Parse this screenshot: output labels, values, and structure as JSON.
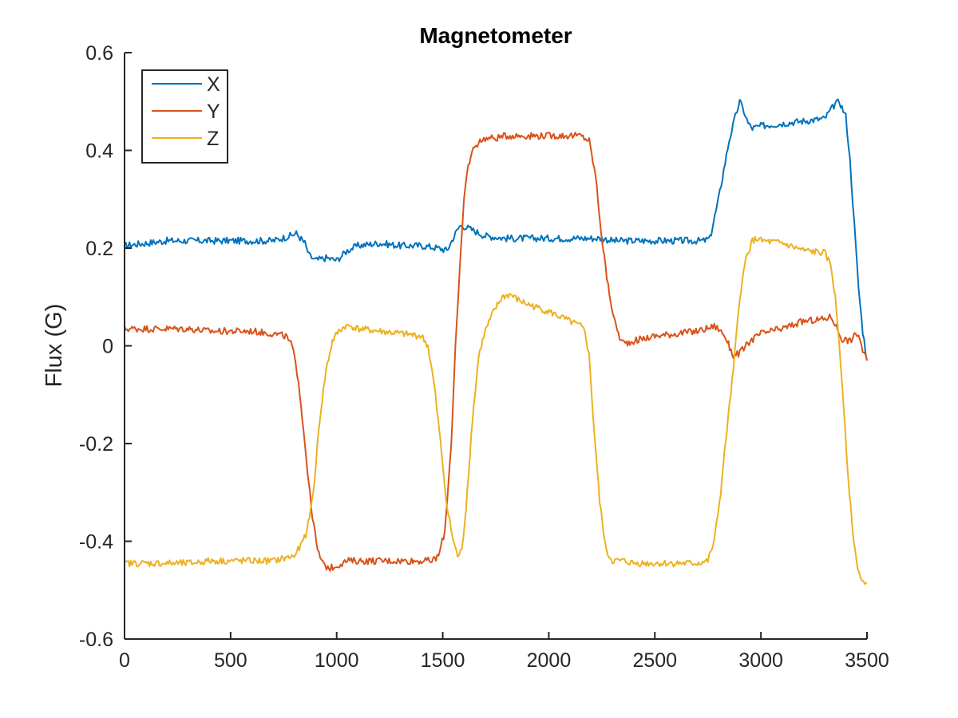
{
  "chart_data": {
    "type": "line",
    "title": "Magnetometer",
    "xlabel": "",
    "ylabel": "Flux (G)",
    "xlim": [
      0,
      3500
    ],
    "ylim": [
      -0.6,
      0.6
    ],
    "xticks": [
      0,
      500,
      1000,
      1500,
      2000,
      2500,
      3000,
      3500
    ],
    "xtick_labels": [
      "0",
      "500",
      "1000",
      "1500",
      "2000",
      "2500",
      "3000",
      "3500"
    ],
    "yticks": [
      -0.6,
      -0.4,
      -0.2,
      0,
      0.2,
      0.4,
      0.6
    ],
    "ytick_labels": [
      "-0.6",
      "-0.4",
      "-0.2",
      "0",
      "0.2",
      "0.4",
      "0.6"
    ],
    "grid": false,
    "legend_position": "top-left",
    "series": [
      {
        "name": "X",
        "color": "#0072BD",
        "x": [
          0,
          100,
          200,
          300,
          400,
          500,
          600,
          700,
          780,
          810,
          850,
          870,
          900,
          950,
          1000,
          1050,
          1100,
          1200,
          1300,
          1400,
          1480,
          1520,
          1560,
          1580,
          1600,
          1650,
          1700,
          1800,
          1900,
          2000,
          2100,
          2200,
          2250,
          2300,
          2400,
          2500,
          2600,
          2700,
          2730,
          2760,
          2800,
          2850,
          2880,
          2900,
          2920,
          2940,
          2960,
          3000,
          3100,
          3200,
          3300,
          3350,
          3370,
          3400,
          3420,
          3440,
          3460,
          3480,
          3500
        ],
        "y": [
          0.205,
          0.21,
          0.215,
          0.215,
          0.215,
          0.215,
          0.215,
          0.215,
          0.225,
          0.23,
          0.21,
          0.185,
          0.175,
          0.18,
          0.175,
          0.195,
          0.205,
          0.21,
          0.205,
          0.205,
          0.2,
          0.195,
          0.23,
          0.245,
          0.245,
          0.235,
          0.225,
          0.22,
          0.22,
          0.22,
          0.22,
          0.22,
          0.22,
          0.215,
          0.215,
          0.215,
          0.215,
          0.215,
          0.215,
          0.22,
          0.3,
          0.42,
          0.47,
          0.5,
          0.48,
          0.455,
          0.445,
          0.45,
          0.455,
          0.46,
          0.465,
          0.495,
          0.5,
          0.47,
          0.38,
          0.25,
          0.12,
          0.03,
          -0.03
        ]
      },
      {
        "name": "Y",
        "color": "#D95319",
        "x": [
          0,
          100,
          200,
          300,
          400,
          500,
          600,
          700,
          760,
          790,
          820,
          850,
          880,
          910,
          940,
          970,
          1000,
          1050,
          1100,
          1200,
          1300,
          1400,
          1450,
          1480,
          1510,
          1540,
          1560,
          1580,
          1600,
          1620,
          1650,
          1700,
          1750,
          1800,
          1900,
          2000,
          2100,
          2150,
          2190,
          2220,
          2250,
          2280,
          2310,
          2340,
          2360,
          2400,
          2500,
          2600,
          2700,
          2780,
          2800,
          2830,
          2870,
          2900,
          2950,
          3000,
          3100,
          3200,
          3300,
          3330,
          3350,
          3380,
          3420,
          3440,
          3460,
          3480,
          3500
        ],
        "y": [
          0.035,
          0.035,
          0.035,
          0.035,
          0.03,
          0.03,
          0.03,
          0.025,
          0.02,
          0.0,
          -0.07,
          -0.2,
          -0.33,
          -0.42,
          -0.45,
          -0.455,
          -0.45,
          -0.44,
          -0.44,
          -0.44,
          -0.44,
          -0.44,
          -0.44,
          -0.43,
          -0.38,
          -0.2,
          0.0,
          0.15,
          0.3,
          0.37,
          0.41,
          0.425,
          0.425,
          0.43,
          0.43,
          0.43,
          0.43,
          0.43,
          0.42,
          0.35,
          0.22,
          0.12,
          0.05,
          0.01,
          0.005,
          0.01,
          0.02,
          0.025,
          0.03,
          0.04,
          0.035,
          0.02,
          -0.02,
          -0.015,
          0.01,
          0.025,
          0.035,
          0.05,
          0.055,
          0.06,
          0.045,
          0.015,
          0.01,
          0.02,
          0.025,
          -0.01,
          -0.03
        ]
      },
      {
        "name": "Z",
        "color": "#EDB120",
        "x": [
          0,
          100,
          200,
          300,
          400,
          500,
          600,
          700,
          800,
          830,
          860,
          890,
          920,
          950,
          980,
          1010,
          1040,
          1070,
          1100,
          1200,
          1300,
          1400,
          1430,
          1460,
          1490,
          1520,
          1550,
          1570,
          1590,
          1610,
          1640,
          1670,
          1700,
          1740,
          1780,
          1820,
          1850,
          1900,
          2000,
          2100,
          2150,
          2170,
          2190,
          2210,
          2240,
          2270,
          2300,
          2330,
          2350,
          2400,
          2500,
          2600,
          2700,
          2750,
          2780,
          2810,
          2840,
          2870,
          2900,
          2930,
          2960,
          2990,
          3000,
          3100,
          3200,
          3300,
          3330,
          3350,
          3370,
          3390,
          3410,
          3430,
          3450,
          3470,
          3490,
          3500
        ],
        "y": [
          -0.445,
          -0.445,
          -0.445,
          -0.445,
          -0.44,
          -0.44,
          -0.44,
          -0.44,
          -0.43,
          -0.41,
          -0.38,
          -0.3,
          -0.15,
          -0.05,
          0.01,
          0.03,
          0.04,
          0.04,
          0.035,
          0.03,
          0.025,
          0.02,
          0.0,
          -0.08,
          -0.2,
          -0.33,
          -0.4,
          -0.43,
          -0.42,
          -0.33,
          -0.15,
          -0.02,
          0.03,
          0.07,
          0.1,
          0.105,
          0.095,
          0.085,
          0.07,
          0.05,
          0.04,
          0.03,
          -0.02,
          -0.15,
          -0.32,
          -0.42,
          -0.44,
          -0.44,
          -0.44,
          -0.445,
          -0.445,
          -0.445,
          -0.445,
          -0.44,
          -0.4,
          -0.3,
          -0.17,
          -0.05,
          0.1,
          0.18,
          0.215,
          0.22,
          0.215,
          0.21,
          0.195,
          0.19,
          0.165,
          0.1,
          0.0,
          -0.12,
          -0.26,
          -0.37,
          -0.44,
          -0.475,
          -0.49,
          -0.485
        ]
      }
    ]
  }
}
